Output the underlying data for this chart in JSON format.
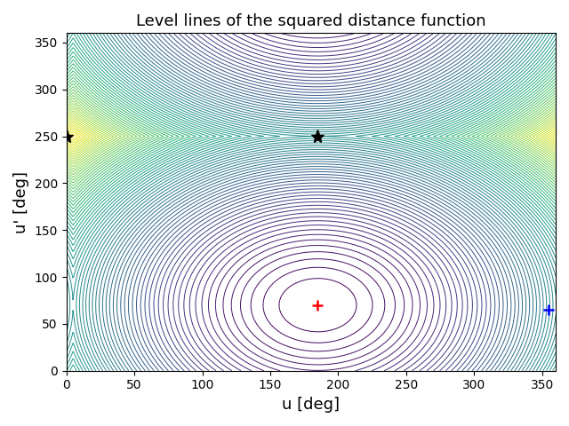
{
  "title": "Level lines of the squared distance function",
  "xlabel": "u [deg]",
  "ylabel": "u' [deg]",
  "xlim": [
    0,
    360
  ],
  "ylim": [
    0,
    360
  ],
  "xticks": [
    0,
    50,
    100,
    150,
    200,
    250,
    300,
    350
  ],
  "yticks": [
    0,
    50,
    100,
    150,
    200,
    250,
    300,
    350
  ],
  "colormap": "viridis",
  "n_contours": 80,
  "red_plus": [
    185,
    70
  ],
  "blue_plus": [
    355,
    65
  ],
  "black_star1": [
    0,
    250
  ],
  "black_star2": [
    185,
    250
  ],
  "ref_u": 185,
  "ref_v": 70,
  "figsize": [
    6.4,
    4.8
  ],
  "dpi": 100
}
